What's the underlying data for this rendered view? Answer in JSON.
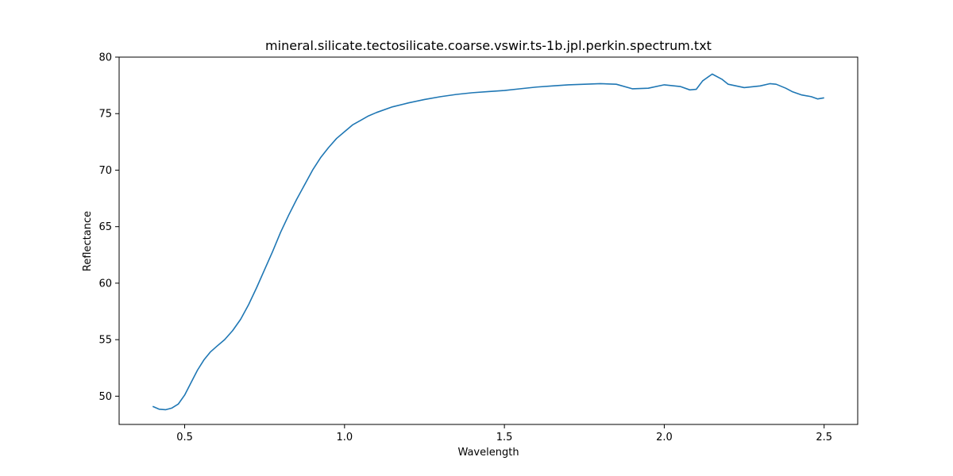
{
  "chart_data": {
    "type": "line",
    "title": "mineral.silicate.tectosilicate.coarse.vswir.ts-1b.jpl.perkin.spectrum.txt",
    "xlabel": "Wavelength",
    "ylabel": "Reflectance",
    "xlim": [
      0.295,
      2.605
    ],
    "ylim": [
      47.5,
      80
    ],
    "xticks": [
      0.5,
      1.0,
      1.5,
      2.0,
      2.5
    ],
    "xtick_labels": [
      "0.5",
      "1.0",
      "1.5",
      "2.0",
      "2.5"
    ],
    "yticks": [
      50,
      55,
      60,
      65,
      70,
      75,
      80
    ],
    "ytick_labels": [
      "50",
      "55",
      "60",
      "65",
      "70",
      "75",
      "80"
    ],
    "grid": false,
    "series": [
      {
        "color": "#1f77b4",
        "x": [
          0.4,
          0.42,
          0.44,
          0.46,
          0.48,
          0.5,
          0.52,
          0.54,
          0.56,
          0.58,
          0.6,
          0.625,
          0.65,
          0.675,
          0.7,
          0.725,
          0.75,
          0.775,
          0.8,
          0.825,
          0.85,
          0.875,
          0.9,
          0.925,
          0.95,
          0.975,
          1.0,
          1.025,
          1.05,
          1.075,
          1.1,
          1.15,
          1.2,
          1.25,
          1.3,
          1.35,
          1.4,
          1.45,
          1.5,
          1.55,
          1.6,
          1.65,
          1.7,
          1.75,
          1.8,
          1.85,
          1.9,
          1.95,
          2.0,
          2.05,
          2.08,
          2.1,
          2.12,
          2.15,
          2.18,
          2.2,
          2.25,
          2.3,
          2.33,
          2.35,
          2.38,
          2.4,
          2.43,
          2.46,
          2.48,
          2.5
        ],
        "y": [
          49.1,
          48.85,
          48.8,
          48.95,
          49.3,
          50.1,
          51.2,
          52.3,
          53.2,
          53.9,
          54.4,
          55.0,
          55.8,
          56.8,
          58.1,
          59.6,
          61.2,
          62.8,
          64.5,
          66.0,
          67.4,
          68.7,
          70.0,
          71.1,
          72.0,
          72.8,
          73.4,
          74.0,
          74.4,
          74.8,
          75.1,
          75.6,
          75.95,
          76.25,
          76.5,
          76.7,
          76.85,
          76.95,
          77.05,
          77.2,
          77.35,
          77.45,
          77.55,
          77.6,
          77.65,
          77.6,
          77.2,
          77.25,
          77.55,
          77.4,
          77.1,
          77.15,
          77.9,
          78.5,
          78.05,
          77.6,
          77.3,
          77.45,
          77.65,
          77.6,
          77.25,
          76.95,
          76.65,
          76.5,
          76.3,
          76.4
        ]
      }
    ]
  }
}
